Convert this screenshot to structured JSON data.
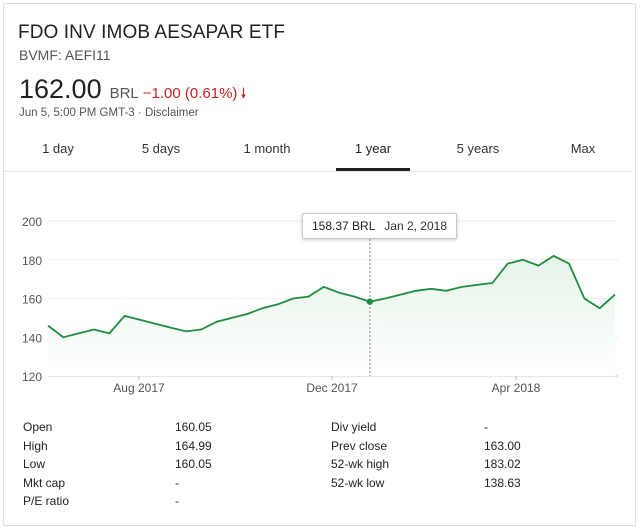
{
  "header": {
    "title": "FDO INV IMOB AESAPAR ETF",
    "ticker": "BVMF: AEFI11",
    "price": "162.00",
    "currency": "BRL",
    "change": "−1.00 (0.61%)",
    "timestamp": "Jun 5, 5:00 PM GMT-3",
    "separator": "·",
    "disclaimer": "Disclaimer",
    "change_color": "#c5221f",
    "change_icon": "arrow-down-icon"
  },
  "tabs": [
    {
      "label": "1 day"
    },
    {
      "label": "5 days"
    },
    {
      "label": "1 month"
    },
    {
      "label": "1 year",
      "active": true
    },
    {
      "label": "5 years"
    },
    {
      "label": "Max"
    }
  ],
  "tooltip": {
    "value": "158.37 BRL",
    "date": "Jan 2, 2018"
  },
  "chart_data": {
    "type": "area",
    "ylim": [
      120,
      200
    ],
    "yticks": [
      "200",
      "180",
      "160",
      "140",
      "120"
    ],
    "xticks": [
      "Aug 2017",
      "Dec 2017",
      "Apr 2018"
    ],
    "line_color": "#1e8e3e",
    "fill_color": "#e6f4ea",
    "x": [
      "Jun 2017",
      "Jun 2017",
      "Jul 2017",
      "Jul 2017",
      "Jul 2017",
      "Jul 2017",
      "Aug 2017",
      "Aug 2017",
      "Aug 2017",
      "Sep 2017",
      "Sep 2017",
      "Sep 2017",
      "Oct 2017",
      "Oct 2017",
      "Oct 2017",
      "Nov 2017",
      "Nov 2017",
      "Nov 2017",
      "Dec 2017",
      "Dec 2017",
      "Dec 2017",
      "Jan 2018",
      "Jan 2018",
      "Jan 2018",
      "Feb 2018",
      "Feb 2018",
      "Feb 2018",
      "Mar 2018",
      "Mar 2018",
      "Mar 2018",
      "Apr 2018",
      "Apr 2018",
      "Apr 2018",
      "May 2018",
      "May 2018",
      "May 2018",
      "Jun 2018",
      "Jun 2018"
    ],
    "values": [
      146,
      140,
      142,
      144,
      142,
      151,
      149,
      147,
      145,
      143,
      144,
      148,
      150,
      152,
      155,
      157,
      160,
      161,
      166,
      163,
      161,
      158.37,
      160,
      162,
      164,
      165,
      164,
      166,
      167,
      168,
      178,
      180,
      177,
      182,
      178,
      160,
      155,
      162
    ]
  },
  "stats": {
    "left": [
      {
        "label": "Open",
        "value": "160.05"
      },
      {
        "label": "High",
        "value": "164.99"
      },
      {
        "label": "Low",
        "value": "160.05"
      },
      {
        "label": "Mkt cap",
        "value": "-"
      },
      {
        "label": "P/E ratio",
        "value": "-"
      }
    ],
    "right": [
      {
        "label": "Div yield",
        "value": "-"
      },
      {
        "label": "Prev close",
        "value": "163.00"
      },
      {
        "label": "52-wk high",
        "value": "183.02"
      },
      {
        "label": "52-wk low",
        "value": "138.63"
      }
    ]
  }
}
